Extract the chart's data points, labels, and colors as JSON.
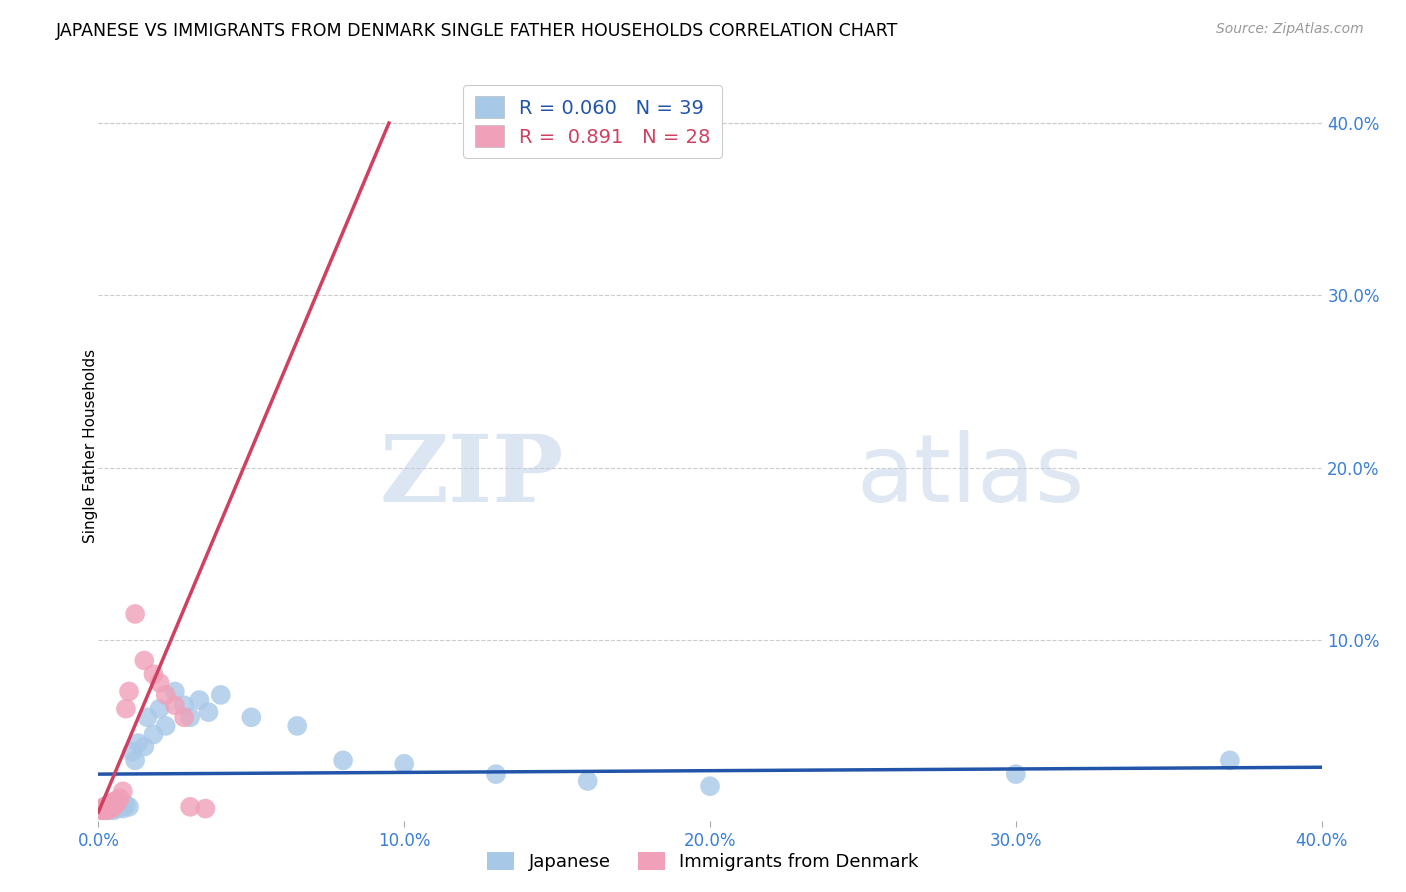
{
  "title": "JAPANESE VS IMMIGRANTS FROM DENMARK SINGLE FATHER HOUSEHOLDS CORRELATION CHART",
  "source": "Source: ZipAtlas.com",
  "ylabel": "Single Father Households",
  "watermark_zip": "ZIP",
  "watermark_atlas": "atlas",
  "xlim": [
    0.0,
    0.4
  ],
  "ylim": [
    -0.005,
    0.43
  ],
  "xticks": [
    0.0,
    0.1,
    0.2,
    0.3,
    0.4
  ],
  "yticks_right": [
    0.1,
    0.2,
    0.3,
    0.4
  ],
  "yticks_grid": [
    0.1,
    0.2,
    0.3,
    0.4
  ],
  "japanese": {
    "color": "#a8c8e8",
    "line_color": "#2255aa",
    "R": 0.06,
    "N": 39,
    "x": [
      0.001,
      0.002,
      0.002,
      0.003,
      0.003,
      0.004,
      0.004,
      0.005,
      0.005,
      0.006,
      0.006,
      0.007,
      0.007,
      0.008,
      0.009,
      0.01,
      0.011,
      0.012,
      0.013,
      0.015,
      0.016,
      0.018,
      0.02,
      0.022,
      0.025,
      0.028,
      0.03,
      0.033,
      0.036,
      0.04,
      0.05,
      0.065,
      0.08,
      0.1,
      0.13,
      0.16,
      0.2,
      0.3,
      0.37
    ],
    "y": [
      0.001,
      0.002,
      0.003,
      0.001,
      0.004,
      0.002,
      0.003,
      0.001,
      0.005,
      0.002,
      0.004,
      0.003,
      0.006,
      0.002,
      0.004,
      0.003,
      0.035,
      0.03,
      0.04,
      0.038,
      0.055,
      0.045,
      0.06,
      0.05,
      0.07,
      0.062,
      0.055,
      0.065,
      0.058,
      0.068,
      0.055,
      0.05,
      0.03,
      0.028,
      0.022,
      0.018,
      0.015,
      0.022,
      0.03
    ]
  },
  "denmark": {
    "color": "#f0a0b8",
    "line_color": "#d04060",
    "R": 0.891,
    "N": 28,
    "x": [
      0.001,
      0.001,
      0.002,
      0.002,
      0.002,
      0.003,
      0.003,
      0.003,
      0.004,
      0.004,
      0.004,
      0.005,
      0.005,
      0.006,
      0.006,
      0.007,
      0.008,
      0.009,
      0.01,
      0.012,
      0.015,
      0.018,
      0.02,
      0.022,
      0.025,
      0.028,
      0.03,
      0.035
    ],
    "y": [
      0.001,
      0.002,
      0.001,
      0.003,
      0.002,
      0.001,
      0.004,
      0.003,
      0.002,
      0.005,
      0.004,
      0.003,
      0.006,
      0.005,
      0.007,
      0.008,
      0.012,
      0.06,
      0.07,
      0.115,
      0.088,
      0.08,
      0.075,
      0.068,
      0.062,
      0.055,
      0.003,
      0.002
    ]
  },
  "den_line_x": [
    0.0,
    0.095
  ],
  "den_line_y": [
    0.0,
    0.4
  ]
}
